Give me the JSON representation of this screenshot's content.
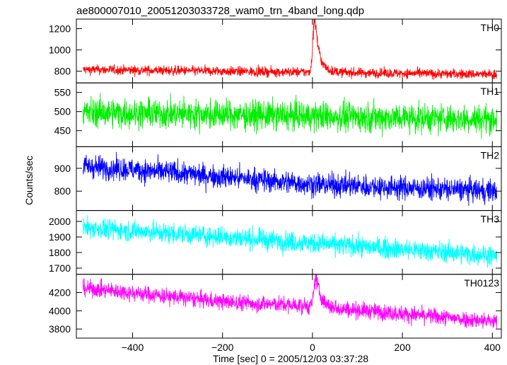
{
  "chart_data": {
    "type": "line",
    "title": "ae800007010_20051203033728_wam0_trn_4band_long.qdp",
    "xlabel": "Time [sec] 0 = 2005/12/03 03:37:28",
    "ylabel": "Counts/sec",
    "xlim": [
      -525,
      420
    ],
    "x_ticks": [
      -400,
      -200,
      0,
      200,
      400
    ],
    "x_tick_labels": [
      "−400",
      "−200",
      "0",
      "200",
      "400"
    ],
    "x_range": [
      -510,
      410
    ],
    "grid": false,
    "panels": [
      {
        "name": "TH0",
        "color": "#ff0000",
        "ylim": [
          690,
          1290
        ],
        "yticks": [
          800,
          1000,
          1200
        ],
        "baseline": [
          [
            -510,
            815
          ],
          [
            410,
            770
          ]
        ],
        "noise": 38,
        "flare": {
          "peak_time": 5,
          "peak_value": 1290,
          "rise_halfwidth": 4,
          "decay_seconds": 8,
          "tail_amplitude": 80,
          "tail_decay_seconds": 20
        }
      },
      {
        "name": "TH1",
        "color": "#00ee00",
        "ylim": [
          408,
          575
        ],
        "yticks": [
          450,
          500,
          550
        ],
        "baseline": [
          [
            -510,
            498
          ],
          [
            410,
            480
          ]
        ],
        "noise": 32
      },
      {
        "name": "TH2",
        "color": "#0000ff",
        "ylim": [
          715,
          995
        ],
        "yticks": [
          800,
          900
        ],
        "baseline": [
          [
            -510,
            910
          ],
          [
            -300,
            880
          ],
          [
            0,
            830
          ],
          [
            410,
            800
          ]
        ],
        "noise": 42
      },
      {
        "name": "TH3",
        "color": "#00ffff",
        "ylim": [
          1660,
          2070
        ],
        "yticks": [
          1700,
          1800,
          1900,
          2000
        ],
        "baseline": [
          [
            -510,
            1960
          ],
          [
            -200,
            1900
          ],
          [
            0,
            1860
          ],
          [
            410,
            1780
          ]
        ],
        "noise": 55
      },
      {
        "name": "TH0123",
        "color": "#ff00ff",
        "ylim": [
          3700,
          4400
        ],
        "yticks": [
          3800,
          4000,
          4200
        ],
        "baseline": [
          [
            -510,
            4250
          ],
          [
            -200,
            4100
          ],
          [
            0,
            4050
          ],
          [
            410,
            3880
          ]
        ],
        "noise": 75,
        "flare": {
          "peak_time": 8,
          "peak_value": 4390,
          "rise_halfwidth": 4,
          "decay_seconds": 10,
          "tail_amplitude": 0,
          "tail_decay_seconds": 20
        }
      }
    ]
  }
}
